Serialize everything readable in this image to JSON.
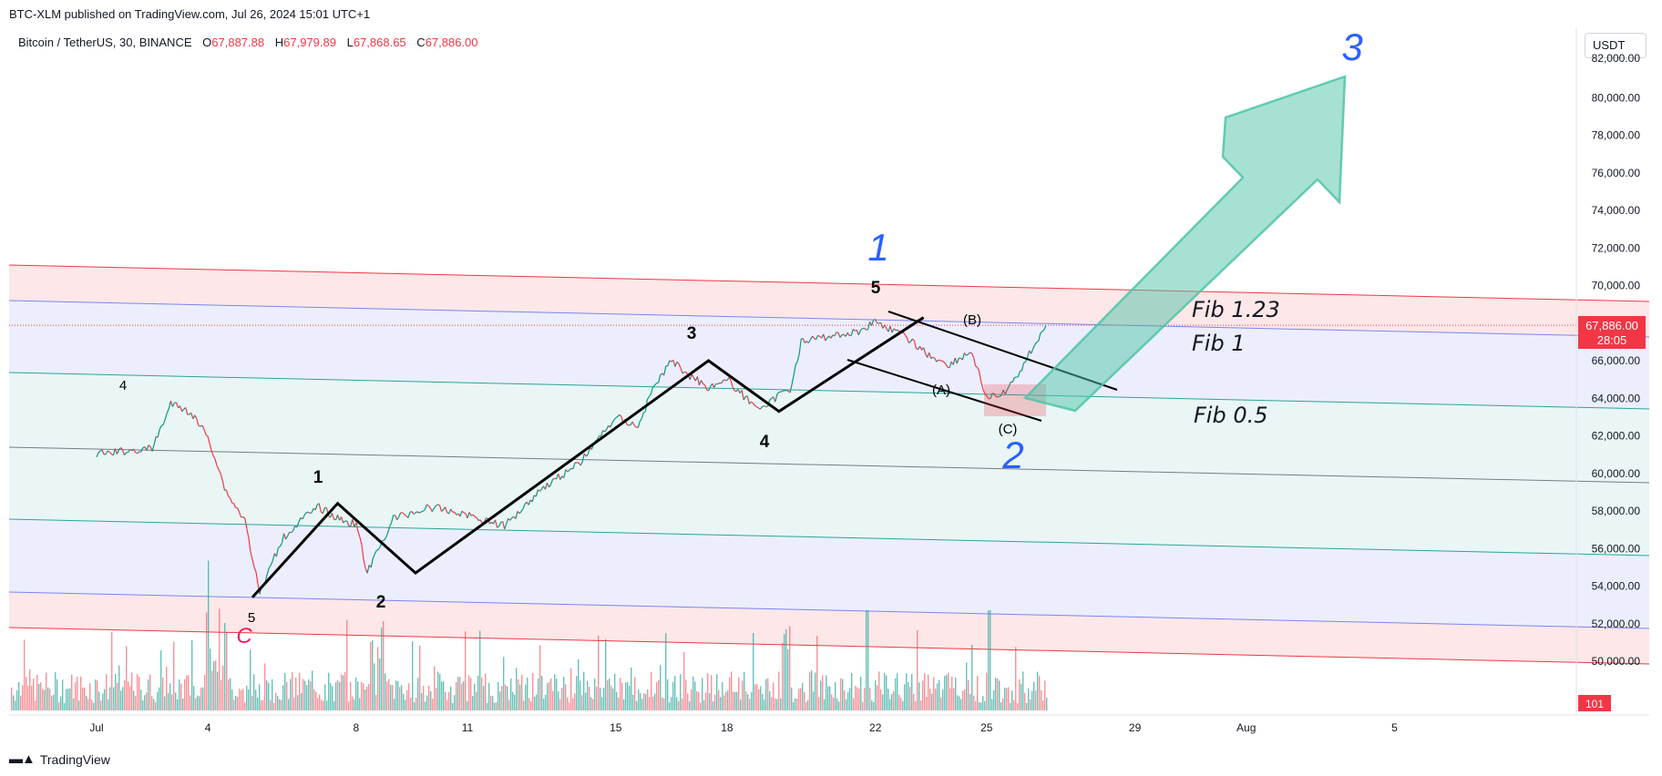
{
  "header": {
    "published": "BTC-XLM published on TradingView.com, Jul 26, 2024 15:01 UTC+1"
  },
  "symbol": {
    "name": "Bitcoin / TetherUS, 30, BINANCE",
    "open_label": "O",
    "open": "67,887.88",
    "high_label": "H",
    "high": "67,979.89",
    "low_label": "L",
    "low": "67,868.65",
    "close_label": "C",
    "close": "67,886.00"
  },
  "currency": "USDT",
  "price_badge": {
    "price": "67,886.00",
    "countdown": "28:05",
    "color": "#f23645"
  },
  "volume_badge": "101",
  "footer": {
    "brand": "TradingView"
  },
  "colors": {
    "red_band": "#f23645",
    "blue_band": "#7b84f0",
    "teal": "#26a69a",
    "blue_label": "#2962ff",
    "arrow": "#4fc4a8"
  },
  "chart_data": {
    "type": "line",
    "title": "",
    "ylabel": "",
    "ylim": [
      48000,
      82500
    ],
    "y_ticks": [
      "82,000.00",
      "80,000.00",
      "78,000.00",
      "76,000.00",
      "74,000.00",
      "72,000.00",
      "70,000.00",
      "68,000.00",
      "66,000.00",
      "64,000.00",
      "62,000.00",
      "60,000.00",
      "58,000.00",
      "56,000.00",
      "54,000.00",
      "52,000.00",
      "50,000.00"
    ],
    "y_tick_values": [
      82000,
      80000,
      78000,
      76000,
      74000,
      72000,
      70000,
      68000,
      66000,
      64000,
      62000,
      60000,
      58000,
      56000,
      54000,
      52000,
      50000
    ],
    "x_ticks": [
      "Jul",
      "4",
      "8",
      "11",
      "15",
      "18",
      "22",
      "25",
      "29",
      "Aug",
      "5"
    ],
    "x_tick_days": [
      1,
      4,
      8,
      11,
      15,
      18,
      22,
      25,
      29,
      32,
      36
    ],
    "series": [
      {
        "x": [
          1,
          1.8,
          2.5,
          3.0,
          3.5,
          4.0,
          4.5,
          5.0,
          5.4,
          6.0,
          6.5,
          7.0,
          7.5,
          8.0,
          8.3,
          9,
          10,
          11,
          12,
          13,
          14,
          15,
          15.6,
          16,
          16.5,
          17,
          17.5,
          18,
          18.5,
          19,
          19.4,
          19.7,
          20,
          21,
          21.5,
          22,
          22.5,
          23,
          23.5,
          24,
          24.6,
          25,
          25.3,
          25.6,
          26,
          26.3,
          26.6
        ],
        "y": [
          61000,
          61200,
          61300,
          63700,
          63300,
          62000,
          59000,
          57500,
          53600,
          56500,
          57500,
          58200,
          57600,
          57300,
          54700,
          57600,
          58200,
          57800,
          57200,
          59200,
          60500,
          63000,
          62500,
          64500,
          66000,
          65200,
          64600,
          65000,
          64000,
          63400,
          64200,
          64500,
          67000,
          67400,
          67500,
          68100,
          67600,
          67000,
          66200,
          65800,
          66500,
          64000,
          64100,
          64500,
          65800,
          66900,
          67886
        ]
      }
    ],
    "wave_lines": [
      [
        [
          5.2,
          53400
        ],
        [
          7.5,
          58400
        ],
        [
          9.6,
          54700
        ],
        [
          17.5,
          66000
        ],
        [
          19.4,
          63300
        ],
        [
          23.3,
          68300
        ]
      ]
    ],
    "fib_labels": [
      "Fib 1.23",
      "Fib 1",
      "Fib 0.5"
    ],
    "wave_labels": {
      "black": [
        "4",
        "5",
        "1",
        "2",
        "3",
        "4",
        "5",
        "(B)",
        "(A)",
        "(C)"
      ],
      "pink": [
        "C"
      ],
      "blue": [
        "1",
        "2",
        "3"
      ]
    }
  }
}
